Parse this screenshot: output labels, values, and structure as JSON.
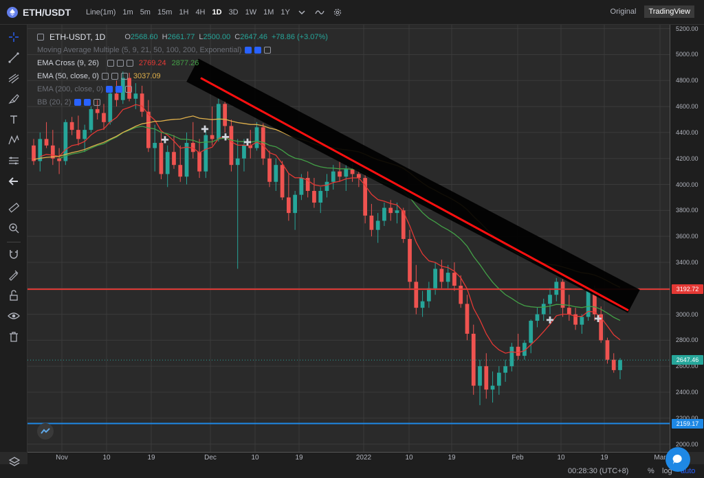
{
  "toolbar": {
    "symbol": "ETH/USDT",
    "timeframes": [
      "Line(1m)",
      "1m",
      "5m",
      "15m",
      "1H",
      "4H",
      "1D",
      "3D",
      "1W",
      "1M",
      "1Y"
    ],
    "active_timeframe": "1D",
    "view_original": "Original",
    "view_tradingview": "TradingView"
  },
  "legend": {
    "pair": "ETH-USDT, 1D",
    "open_label": "O",
    "open": "2568.60",
    "high_label": "H",
    "high": "2661.77",
    "low_label": "L",
    "low": "2500.00",
    "close_label": "C",
    "close": "2647.46",
    "change": "+78.86 (+3.07%)",
    "ma_multiple": "Moving Average Multiple (5, 9, 21, 50, 100, 200, Exponential)",
    "ema_cross": "EMA Cross (9, 26)",
    "ema_cross_v1": "2769.24",
    "ema_cross_v2": "2877.26",
    "ema50": "EMA (50, close, 0)",
    "ema50_v": "3037.09",
    "ema200": "EMA (200, close, 0)",
    "bb": "BB (20, 2)"
  },
  "chart_data": {
    "type": "candlestick",
    "y_ticks": [
      5200,
      5000,
      4800,
      4600,
      4400,
      4200,
      4000,
      3800,
      3600,
      3400,
      3200,
      3000,
      2800,
      2600,
      2400,
      2200,
      2000
    ],
    "ylim": [
      1940,
      5230
    ],
    "x_ticks": [
      "Nov",
      "10",
      "19",
      "Dec",
      "10",
      "19",
      "2022",
      "10",
      "19",
      "Feb",
      "10",
      "19",
      "Mar"
    ],
    "price_lines": [
      {
        "label": "3192.72",
        "value": 3192.72,
        "color": "#e53935"
      },
      {
        "label": "2647.46",
        "value": 2647.46,
        "color": "#26a69a"
      },
      {
        "label": "2159.17",
        "value": 2159.17,
        "color": "#1e88e5"
      }
    ],
    "candles": [
      [
        4300,
        4350,
        4150,
        4180
      ],
      [
        4180,
        4400,
        4100,
        4350
      ],
      [
        4350,
        4480,
        4280,
        4300
      ],
      [
        4300,
        4420,
        4150,
        4200
      ],
      [
        4200,
        4280,
        4080,
        4180
      ],
      [
        4180,
        4500,
        4150,
        4480
      ],
      [
        4480,
        4520,
        4380,
        4420
      ],
      [
        4420,
        4530,
        4300,
        4350
      ],
      [
        4350,
        4460,
        4250,
        4420
      ],
      [
        4420,
        4600,
        4400,
        4580
      ],
      [
        4580,
        4650,
        4500,
        4550
      ],
      [
        4550,
        4620,
        4420,
        4480
      ],
      [
        4480,
        4720,
        4460,
        4700
      ],
      [
        4700,
        4800,
        4600,
        4650
      ],
      [
        4650,
        4870,
        4620,
        4820
      ],
      [
        4820,
        4860,
        4640,
        4660
      ],
      [
        4660,
        4780,
        4580,
        4700
      ],
      [
        4700,
        4760,
        4520,
        4560
      ],
      [
        4560,
        4650,
        4250,
        4280
      ],
      [
        4280,
        4460,
        4100,
        4320
      ],
      [
        4320,
        4400,
        4040,
        4080
      ],
      [
        4080,
        4300,
        3980,
        4250
      ],
      [
        4250,
        4380,
        4120,
        4150
      ],
      [
        4150,
        4300,
        4020,
        4060
      ],
      [
        4060,
        4400,
        4000,
        4320
      ],
      [
        4320,
        4480,
        4200,
        4250
      ],
      [
        4250,
        4350,
        4050,
        4100
      ],
      [
        4100,
        4420,
        4050,
        4380
      ],
      [
        4380,
        4600,
        4300,
        4350
      ],
      [
        4350,
        4660,
        4330,
        4620
      ],
      [
        4620,
        4650,
        4400,
        4450
      ],
      [
        4450,
        4500,
        4100,
        4150
      ],
      [
        4150,
        4350,
        3350,
        4200
      ],
      [
        4200,
        4350,
        4100,
        4300
      ],
      [
        4300,
        4420,
        4200,
        4280
      ],
      [
        4280,
        4480,
        4260,
        4440
      ],
      [
        4440,
        4470,
        4150,
        4200
      ],
      [
        4200,
        4260,
        3980,
        4020
      ],
      [
        4020,
        4200,
        3950,
        4150
      ],
      [
        4150,
        4180,
        3880,
        3900
      ],
      [
        3900,
        4080,
        3720,
        3780
      ],
      [
        3780,
        3950,
        3650,
        3920
      ],
      [
        3920,
        4080,
        3880,
        4050
      ],
      [
        4050,
        4100,
        3900,
        3950
      ],
      [
        3950,
        4050,
        3820,
        3860
      ],
      [
        3860,
        3980,
        3780,
        3950
      ],
      [
        3950,
        4080,
        3900,
        4020
      ],
      [
        4020,
        4150,
        3960,
        4100
      ],
      [
        4100,
        4180,
        4020,
        4060
      ],
      [
        4060,
        4150,
        3950,
        4120
      ],
      [
        4120,
        4160,
        4020,
        4080
      ],
      [
        4080,
        4120,
        3980,
        4050
      ],
      [
        4050,
        4080,
        3700,
        3760
      ],
      [
        3760,
        3850,
        3600,
        3650
      ],
      [
        3650,
        3780,
        3550,
        3720
      ],
      [
        3720,
        3860,
        3680,
        3820
      ],
      [
        3820,
        3880,
        3720,
        3780
      ],
      [
        3780,
        3860,
        3700,
        3800
      ],
      [
        3800,
        3820,
        3550,
        3580
      ],
      [
        3580,
        3650,
        3200,
        3250
      ],
      [
        3250,
        3380,
        3000,
        3050
      ],
      [
        3050,
        3180,
        2980,
        3100
      ],
      [
        3100,
        3250,
        3050,
        3200
      ],
      [
        3200,
        3400,
        3150,
        3350
      ],
      [
        3350,
        3420,
        3200,
        3250
      ],
      [
        3250,
        3380,
        3200,
        3320
      ],
      [
        3320,
        3400,
        3180,
        3220
      ],
      [
        3220,
        3300,
        3050,
        3080
      ],
      [
        3080,
        3150,
        2800,
        2850
      ],
      [
        2850,
        2920,
        2380,
        2450
      ],
      [
        2450,
        2650,
        2300,
        2600
      ],
      [
        2600,
        2700,
        2350,
        2420
      ],
      [
        2420,
        2560,
        2320,
        2450
      ],
      [
        2450,
        2600,
        2380,
        2550
      ],
      [
        2550,
        2650,
        2480,
        2600
      ],
      [
        2600,
        2780,
        2560,
        2750
      ],
      [
        2750,
        2850,
        2650,
        2680
      ],
      [
        2680,
        2800,
        2650,
        2780
      ],
      [
        2780,
        2960,
        2700,
        2950
      ],
      [
        2950,
        3050,
        2900,
        3000
      ],
      [
        3000,
        3120,
        2950,
        3080
      ],
      [
        3080,
        3200,
        3000,
        3150
      ],
      [
        3150,
        3280,
        3100,
        3250
      ],
      [
        3250,
        3270,
        2980,
        3050
      ],
      [
        3050,
        3150,
        2950,
        3000
      ],
      [
        3000,
        3050,
        2880,
        2920
      ],
      [
        2920,
        3000,
        2850,
        2980
      ],
      [
        2980,
        3200,
        2950,
        3180
      ],
      [
        3180,
        3220,
        2950,
        3000
      ],
      [
        3000,
        3060,
        2780,
        2800
      ],
      [
        2800,
        2820,
        2620,
        2650
      ],
      [
        2650,
        2700,
        2550,
        2570
      ],
      [
        2570,
        2662,
        2500,
        2647
      ]
    ]
  },
  "status": {
    "clock": "00:28:30 (UTC+8)",
    "pct": "%",
    "log": "log",
    "auto": "auto"
  }
}
